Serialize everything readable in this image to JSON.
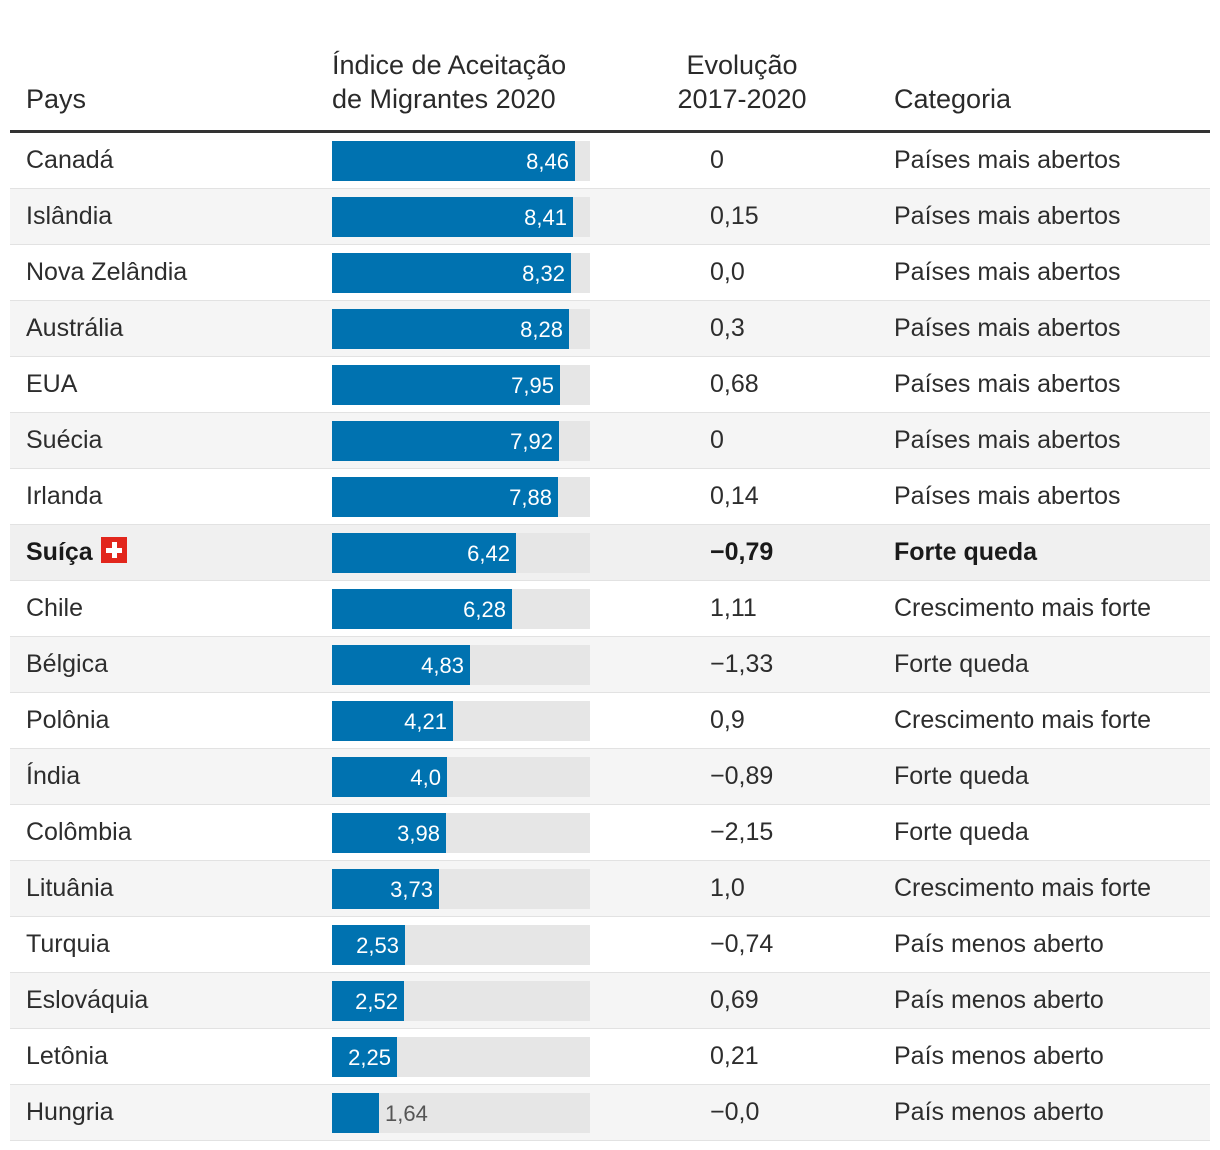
{
  "chart_data": {
    "type": "table",
    "columns": [
      "Pays",
      "Índice de Aceitação\nde Migrantes 2020",
      "Evolução\n2017-2020",
      "Categoria"
    ],
    "xlim": [
      0,
      9
    ],
    "highlight_color": "#0072b0",
    "rows": [
      {
        "country": "Canadá",
        "index": 8.46,
        "index_label": "8,46",
        "evolution": "0",
        "category": "Países mais abertos"
      },
      {
        "country": "Islândia",
        "index": 8.41,
        "index_label": "8,41",
        "evolution": "0,15",
        "category": "Países mais abertos"
      },
      {
        "country": "Nova Zelândia",
        "index": 8.32,
        "index_label": "8,32",
        "evolution": "0,0",
        "category": "Países mais abertos"
      },
      {
        "country": "Austrália",
        "index": 8.28,
        "index_label": "8,28",
        "evolution": "0,3",
        "category": "Países mais abertos"
      },
      {
        "country": "EUA",
        "index": 7.95,
        "index_label": "7,95",
        "evolution": "0,68",
        "category": "Países mais abertos"
      },
      {
        "country": "Suécia",
        "index": 7.92,
        "index_label": "7,92",
        "evolution": "0",
        "category": "Países mais abertos"
      },
      {
        "country": "Irlanda",
        "index": 7.88,
        "index_label": "7,88",
        "evolution": "0,14",
        "category": "Países mais abertos"
      },
      {
        "country": "Suíça",
        "index": 6.42,
        "index_label": "6,42",
        "evolution": "−0,79",
        "category": "Forte queda",
        "highlight": true,
        "icon": "swiss-flag-icon"
      },
      {
        "country": "Chile",
        "index": 6.28,
        "index_label": "6,28",
        "evolution": "1,11",
        "category": "Crescimento mais forte"
      },
      {
        "country": "Bélgica",
        "index": 4.83,
        "index_label": "4,83",
        "evolution": "−1,33",
        "category": "Forte queda"
      },
      {
        "country": "Polônia",
        "index": 4.21,
        "index_label": "4,21",
        "evolution": "0,9",
        "category": "Crescimento mais forte"
      },
      {
        "country": "Índia",
        "index": 4.0,
        "index_label": "4,0",
        "evolution": "−0,89",
        "category": "Forte queda"
      },
      {
        "country": "Colômbia",
        "index": 3.98,
        "index_label": "3,98",
        "evolution": "−2,15",
        "category": "Forte queda"
      },
      {
        "country": "Lituânia",
        "index": 3.73,
        "index_label": "3,73",
        "evolution": "1,0",
        "category": "Crescimento mais forte"
      },
      {
        "country": "Turquia",
        "index": 2.53,
        "index_label": "2,53",
        "evolution": "−0,74",
        "category": "País menos aberto"
      },
      {
        "country": "Eslováquia",
        "index": 2.52,
        "index_label": "2,52",
        "evolution": "0,69",
        "category": "País menos aberto"
      },
      {
        "country": "Letônia",
        "index": 2.25,
        "index_label": "2,25",
        "evolution": "0,21",
        "category": "País menos aberto"
      },
      {
        "country": "Hungria",
        "index": 1.64,
        "index_label": "1,64",
        "evolution": "−0,0",
        "category": "País menos aberto"
      }
    ]
  }
}
